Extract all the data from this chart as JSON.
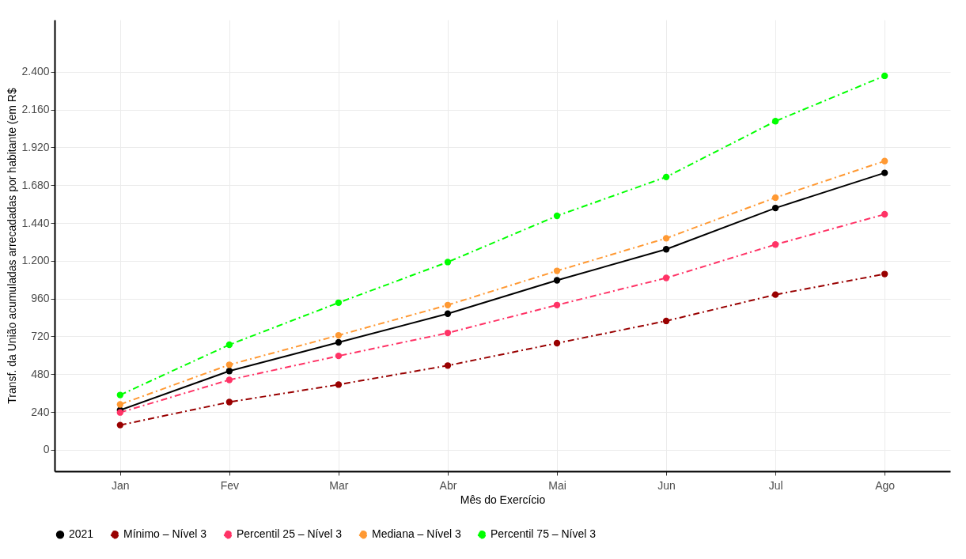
{
  "chart_data": {
    "type": "line",
    "xlabel": "Mês do Exercício",
    "ylabel": "Transf. da União acumuladas arrecadadas por habitante (em R$",
    "categories": [
      "Jan",
      "Fev",
      "Mar",
      "Abr",
      "Mai",
      "Jun",
      "Jul",
      "Ago"
    ],
    "series": [
      {
        "name": "2021",
        "color": "#000000",
        "line_style": "solid",
        "values": [
          252,
          500,
          682,
          864,
          1076,
          1273,
          1535,
          1758
        ]
      },
      {
        "name": "Mínimo – Nível 3",
        "color": "#990000",
        "line_style": "dashdot",
        "values": [
          157,
          303,
          414,
          535,
          677,
          818,
          985,
          1116
        ]
      },
      {
        "name": "Percentil 25 – Nível 3",
        "color": "#ff3366",
        "line_style": "dashdot",
        "values": [
          237,
          444,
          596,
          742,
          919,
          1091,
          1303,
          1495
        ]
      },
      {
        "name": "Mediana – Nível 3",
        "color": "#ff9933",
        "line_style": "dashdot",
        "values": [
          288,
          540,
          727,
          919,
          1136,
          1343,
          1601,
          1833
        ]
      },
      {
        "name": "Percentil 75 – Nível 3",
        "color": "#00ff00",
        "line_style": "dashdot",
        "values": [
          348,
          667,
          934,
          1192,
          1485,
          1732,
          2086,
          2374
        ]
      }
    ],
    "ylim": [
      -136,
      2730
    ],
    "yticks": [
      0,
      240,
      480,
      720,
      960,
      {
        "value": 1200,
        "label": "1.200"
      },
      {
        "value": 1440,
        "label": "1.440"
      },
      {
        "value": 1680,
        "label": "1.680"
      },
      {
        "value": 1920,
        "label": "1.920"
      },
      {
        "value": 2160,
        "label": "2.160"
      },
      {
        "value": 2400,
        "label": "2.400"
      }
    ],
    "grid": true,
    "legend": "bottom",
    "marker": "circle"
  }
}
